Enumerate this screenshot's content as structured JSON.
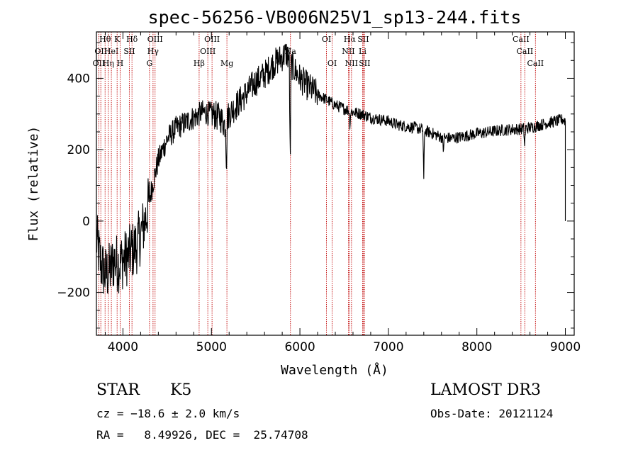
{
  "chart_data": {
    "type": "line",
    "title": "spec-56256-VB006N25V1_sp13-244.fits",
    "xlabel": "Wavelength (Å)",
    "ylabel": "Flux (relative)",
    "xlim": [
      3700,
      9100
    ],
    "ylim": [
      -320,
      530
    ],
    "xticks": [
      4000,
      5000,
      6000,
      7000,
      8000,
      9000
    ],
    "yticks": [
      -200,
      0,
      200,
      400
    ],
    "tick_labels": {
      "x": [
        "4000",
        "5000",
        "6000",
        "7000",
        "8000",
        "9000"
      ],
      "y": [
        "−200",
        "0",
        "200",
        "400"
      ]
    },
    "spectrum_anchors": [
      [
        3700,
        -50
      ],
      [
        3750,
        -120
      ],
      [
        3800,
        -150
      ],
      [
        3850,
        -140
      ],
      [
        3900,
        -110
      ],
      [
        3950,
        -120
      ],
      [
        4000,
        -110
      ],
      [
        4050,
        -100
      ],
      [
        4100,
        -85
      ],
      [
        4150,
        -70
      ],
      [
        4200,
        -40
      ],
      [
        4250,
        0
      ],
      [
        4300,
        60
      ],
      [
        4350,
        120
      ],
      [
        4400,
        170
      ],
      [
        4500,
        230
      ],
      [
        4600,
        260
      ],
      [
        4700,
        275
      ],
      [
        4800,
        290
      ],
      [
        4900,
        305
      ],
      [
        5000,
        300
      ],
      [
        5100,
        290
      ],
      [
        5150,
        270
      ],
      [
        5200,
        300
      ],
      [
        5300,
        330
      ],
      [
        5400,
        360
      ],
      [
        5500,
        390
      ],
      [
        5600,
        410
      ],
      [
        5700,
        440
      ],
      [
        5800,
        460
      ],
      [
        5850,
        470
      ],
      [
        5900,
        440
      ],
      [
        5950,
        420
      ],
      [
        6000,
        400
      ],
      [
        6100,
        375
      ],
      [
        6200,
        355
      ],
      [
        6300,
        340
      ],
      [
        6400,
        325
      ],
      [
        6500,
        315
      ],
      [
        6600,
        305
      ],
      [
        6700,
        300
      ],
      [
        6800,
        290
      ],
      [
        6900,
        285
      ],
      [
        7000,
        280
      ],
      [
        7100,
        270
      ],
      [
        7200,
        265
      ],
      [
        7300,
        262
      ],
      [
        7400,
        255
      ],
      [
        7500,
        245
      ],
      [
        7600,
        235
      ],
      [
        7700,
        232
      ],
      [
        7800,
        235
      ],
      [
        7900,
        240
      ],
      [
        8000,
        245
      ],
      [
        8100,
        248
      ],
      [
        8200,
        252
      ],
      [
        8300,
        255
      ],
      [
        8400,
        257
      ],
      [
        8500,
        258
      ],
      [
        8600,
        262
      ],
      [
        8700,
        268
      ],
      [
        8800,
        275
      ],
      [
        8900,
        280
      ],
      [
        8980,
        285
      ],
      [
        9000,
        280
      ]
    ],
    "absorption_dips": [
      [
        5890,
        -300
      ],
      [
        5170,
        -130
      ],
      [
        7400,
        -140
      ],
      [
        7620,
        -40
      ],
      [
        8540,
        -50
      ],
      [
        6565,
        -40
      ]
    ],
    "noise": [
      [
        3700,
        4300,
        60
      ],
      [
        4300,
        5000,
        25
      ],
      [
        5000,
        6200,
        30
      ],
      [
        6200,
        9000,
        12
      ]
    ],
    "tail_drop": [
      [
        9000,
        280
      ],
      [
        9000,
        0
      ]
    ],
    "line_markers": [
      {
        "wl": 3727,
        "labels": [
          [
            "OII",
            2
          ]
        ]
      },
      {
        "wl": 3750,
        "labels": [
          [
            "OII",
            1
          ]
        ]
      },
      {
        "wl": 3798,
        "labels": [
          [
            "Hθ",
            0
          ]
        ]
      },
      {
        "wl": 3835,
        "labels": [
          [
            "Hη",
            2
          ]
        ]
      },
      {
        "wl": 3869,
        "labels": [
          [
            "HeI",
            1
          ]
        ]
      },
      {
        "wl": 3934,
        "labels": [
          [
            "K",
            0
          ]
        ]
      },
      {
        "wl": 3968,
        "labels": [
          [
            "H",
            2
          ]
        ]
      },
      {
        "wl": 4072,
        "labels": [
          [
            "SII",
            1
          ]
        ]
      },
      {
        "wl": 4102,
        "labels": [
          [
            "Hδ",
            0
          ]
        ]
      },
      {
        "wl": 4300,
        "labels": [
          [
            "G",
            2
          ]
        ]
      },
      {
        "wl": 4340,
        "labels": [
          [
            "Hγ",
            1
          ]
        ]
      },
      {
        "wl": 4363,
        "labels": [
          [
            "OIII",
            0
          ]
        ]
      },
      {
        "wl": 4861,
        "labels": [
          [
            "Hβ",
            2
          ]
        ]
      },
      {
        "wl": 4959,
        "labels": [
          [
            "OIII",
            1
          ]
        ]
      },
      {
        "wl": 5007,
        "labels": [
          [
            "OIII",
            0
          ]
        ]
      },
      {
        "wl": 5175,
        "labels": [
          [
            "Mg",
            2
          ]
        ]
      },
      {
        "wl": 5893,
        "labels": [
          [
            "Na",
            1
          ]
        ]
      },
      {
        "wl": 6300,
        "labels": [
          [
            "OI",
            0
          ]
        ]
      },
      {
        "wl": 6364,
        "labels": [
          [
            "OI",
            2
          ]
        ]
      },
      {
        "wl": 6548,
        "labels": [
          [
            "NII",
            1
          ]
        ]
      },
      {
        "wl": 6563,
        "labels": [
          [
            "Hα",
            0
          ]
        ]
      },
      {
        "wl": 6583,
        "labels": [
          [
            "NII",
            2
          ]
        ]
      },
      {
        "wl": 6708,
        "labels": [
          [
            "Li",
            1
          ]
        ]
      },
      {
        "wl": 6716,
        "labels": [
          [
            "SII",
            0
          ]
        ]
      },
      {
        "wl": 6731,
        "labels": [
          [
            "SII",
            2
          ]
        ]
      },
      {
        "wl": 8498,
        "labels": [
          [
            "CaII",
            0
          ]
        ]
      },
      {
        "wl": 8542,
        "labels": [
          [
            "CaII",
            1
          ]
        ]
      },
      {
        "wl": 8662,
        "labels": [
          [
            "CaII",
            2
          ]
        ]
      }
    ]
  },
  "footer": {
    "object_class": "STAR",
    "subclass": "K5",
    "survey": "LAMOST DR3",
    "cz": "cz = −18.6 ± 2.0 km/s",
    "obs_date": "Obs-Date: 20121124",
    "coords": "RA =   8.49926, DEC =  25.74708"
  }
}
